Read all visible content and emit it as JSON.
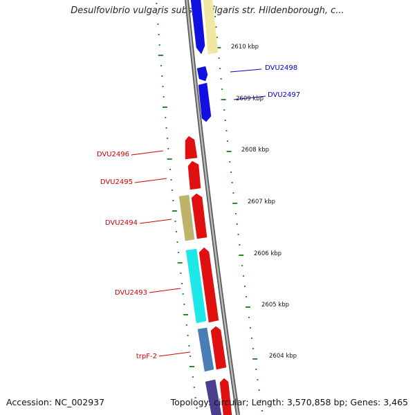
{
  "title": "Desulfovibrio vulgaris subsp. vulgaris str. Hildenborough, c...",
  "footer": {
    "accession": "Accession: NC_002937",
    "stats": "Topology: circular; Length: 3,570,858 bp; Genes: 3,465"
  },
  "scale_labels": [
    "2610 kbp",
    "2609 kbp",
    "2608 kbp",
    "2607 kbp",
    "2606 kbp",
    "2605 kbp",
    "2604 kbp"
  ],
  "gene_labels": {
    "forward": [
      "DVU2498",
      "DVU2497"
    ],
    "reverse": [
      "DVU2496",
      "DVU2495",
      "DVU2494",
      "DVU2493",
      "trpF-2"
    ]
  },
  "colors": {
    "forward_gene": "#1010e0",
    "reverse_gene": "#e01010",
    "forward_label": "#0000cc",
    "reverse_label": "#cc0000",
    "backbone": "#8a8a8a",
    "tick": "#2a8a2a",
    "cds_yellow": "#efe7a2",
    "cds_khaki": "#bdb36a",
    "cds_cyan": "#1de8e8",
    "cds_steel": "#4a7fb5",
    "cds_purple": "#4a3f8f"
  }
}
